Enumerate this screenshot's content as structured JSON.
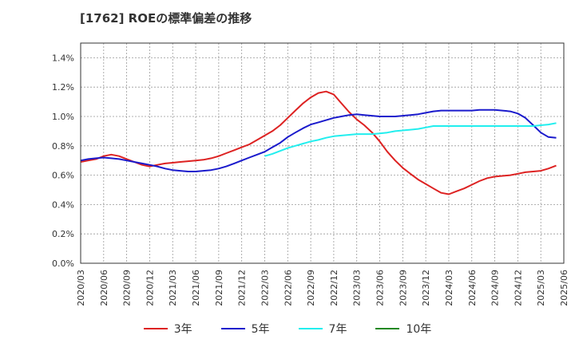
{
  "chart_data": {
    "type": "line",
    "title": "[1762]  ROEの標準偏差の推移",
    "xlabel": "",
    "ylabel": "",
    "ylim": [
      0,
      1.5
    ],
    "y_ticks": [
      "0.0%",
      "0.2%",
      "0.4%",
      "0.6%",
      "0.8%",
      "1.0%",
      "1.2%",
      "1.4%"
    ],
    "categories": [
      "2020/03",
      "2020/06",
      "2020/09",
      "2020/12",
      "2021/03",
      "2021/06",
      "2021/09",
      "2021/12",
      "2022/03",
      "2022/06",
      "2022/09",
      "2022/12",
      "2023/03",
      "2023/06",
      "2023/09",
      "2023/12",
      "2024/03",
      "2024/06",
      "2024/09",
      "2024/12",
      "2025/03",
      "2025/06"
    ],
    "series": [
      {
        "name": "3年",
        "color": "#dd2222",
        "points": [
          [
            0,
            0.69
          ],
          [
            0.33,
            0.7
          ],
          [
            0.67,
            0.71
          ],
          [
            1,
            0.73
          ],
          [
            1.33,
            0.74
          ],
          [
            1.67,
            0.73
          ],
          [
            2,
            0.71
          ],
          [
            2.33,
            0.69
          ],
          [
            2.67,
            0.67
          ],
          [
            3,
            0.66
          ],
          [
            3.33,
            0.67
          ],
          [
            3.67,
            0.68
          ],
          [
            4,
            0.685
          ],
          [
            4.33,
            0.69
          ],
          [
            4.67,
            0.695
          ],
          [
            5,
            0.7
          ],
          [
            5.33,
            0.705
          ],
          [
            5.67,
            0.715
          ],
          [
            6,
            0.73
          ],
          [
            6.33,
            0.75
          ],
          [
            6.67,
            0.77
          ],
          [
            7,
            0.79
          ],
          [
            7.33,
            0.81
          ],
          [
            7.67,
            0.84
          ],
          [
            8,
            0.87
          ],
          [
            8.33,
            0.9
          ],
          [
            8.67,
            0.94
          ],
          [
            9,
            0.99
          ],
          [
            9.33,
            1.04
          ],
          [
            9.67,
            1.09
          ],
          [
            10,
            1.13
          ],
          [
            10.33,
            1.16
          ],
          [
            10.67,
            1.17
          ],
          [
            11,
            1.15
          ],
          [
            11.33,
            1.09
          ],
          [
            11.67,
            1.03
          ],
          [
            12,
            0.98
          ],
          [
            12.33,
            0.94
          ],
          [
            12.67,
            0.89
          ],
          [
            13,
            0.83
          ],
          [
            13.33,
            0.76
          ],
          [
            13.67,
            0.7
          ],
          [
            14,
            0.65
          ],
          [
            14.33,
            0.61
          ],
          [
            14.67,
            0.57
          ],
          [
            15,
            0.54
          ],
          [
            15.33,
            0.51
          ],
          [
            15.67,
            0.48
          ],
          [
            16,
            0.47
          ],
          [
            16.33,
            0.49
          ],
          [
            16.67,
            0.51
          ],
          [
            17,
            0.535
          ],
          [
            17.33,
            0.56
          ],
          [
            17.67,
            0.58
          ],
          [
            18,
            0.59
          ],
          [
            18.33,
            0.595
          ],
          [
            18.67,
            0.6
          ],
          [
            19,
            0.61
          ],
          [
            19.33,
            0.62
          ],
          [
            19.67,
            0.625
          ],
          [
            20,
            0.63
          ],
          [
            20.33,
            0.645
          ],
          [
            20.67,
            0.665
          ]
        ]
      },
      {
        "name": "5年",
        "color": "#1a1acc",
        "points": [
          [
            0,
            0.7
          ],
          [
            0.33,
            0.71
          ],
          [
            0.67,
            0.715
          ],
          [
            1,
            0.72
          ],
          [
            1.33,
            0.715
          ],
          [
            1.67,
            0.71
          ],
          [
            2,
            0.7
          ],
          [
            2.33,
            0.69
          ],
          [
            2.67,
            0.68
          ],
          [
            3,
            0.67
          ],
          [
            3.33,
            0.66
          ],
          [
            3.67,
            0.645
          ],
          [
            4,
            0.635
          ],
          [
            4.33,
            0.63
          ],
          [
            4.67,
            0.625
          ],
          [
            5,
            0.625
          ],
          [
            5.33,
            0.63
          ],
          [
            5.67,
            0.635
          ],
          [
            6,
            0.645
          ],
          [
            6.33,
            0.66
          ],
          [
            6.67,
            0.68
          ],
          [
            7,
            0.7
          ],
          [
            7.33,
            0.72
          ],
          [
            7.67,
            0.74
          ],
          [
            8,
            0.76
          ],
          [
            8.33,
            0.79
          ],
          [
            8.67,
            0.82
          ],
          [
            9,
            0.86
          ],
          [
            9.33,
            0.89
          ],
          [
            9.67,
            0.92
          ],
          [
            10,
            0.945
          ],
          [
            10.33,
            0.96
          ],
          [
            10.67,
            0.975
          ],
          [
            11,
            0.99
          ],
          [
            11.33,
            1.0
          ],
          [
            11.67,
            1.01
          ],
          [
            12,
            1.015
          ],
          [
            12.33,
            1.01
          ],
          [
            12.67,
            1.005
          ],
          [
            13,
            1.0
          ],
          [
            13.33,
            1.0
          ],
          [
            13.67,
            1.0
          ],
          [
            14,
            1.005
          ],
          [
            14.33,
            1.01
          ],
          [
            14.67,
            1.015
          ],
          [
            15,
            1.025
          ],
          [
            15.33,
            1.035
          ],
          [
            15.67,
            1.04
          ],
          [
            16,
            1.04
          ],
          [
            16.33,
            1.04
          ],
          [
            16.67,
            1.04
          ],
          [
            17,
            1.04
          ],
          [
            17.33,
            1.045
          ],
          [
            17.67,
            1.045
          ],
          [
            18,
            1.045
          ],
          [
            18.33,
            1.04
          ],
          [
            18.67,
            1.035
          ],
          [
            19,
            1.02
          ],
          [
            19.33,
            0.99
          ],
          [
            19.67,
            0.94
          ],
          [
            20,
            0.89
          ],
          [
            20.33,
            0.86
          ],
          [
            20.67,
            0.855
          ]
        ]
      },
      {
        "name": "7年",
        "color": "#22eeee",
        "points": [
          [
            8,
            0.73
          ],
          [
            8.33,
            0.745
          ],
          [
            8.67,
            0.765
          ],
          [
            9,
            0.785
          ],
          [
            9.33,
            0.8
          ],
          [
            9.67,
            0.815
          ],
          [
            10,
            0.83
          ],
          [
            10.33,
            0.84
          ],
          [
            10.67,
            0.855
          ],
          [
            11,
            0.865
          ],
          [
            11.33,
            0.87
          ],
          [
            11.67,
            0.875
          ],
          [
            12,
            0.88
          ],
          [
            12.33,
            0.88
          ],
          [
            12.67,
            0.88
          ],
          [
            13,
            0.885
          ],
          [
            13.33,
            0.89
          ],
          [
            13.67,
            0.9
          ],
          [
            14,
            0.905
          ],
          [
            14.33,
            0.91
          ],
          [
            14.67,
            0.915
          ],
          [
            15,
            0.925
          ],
          [
            15.33,
            0.935
          ],
          [
            15.67,
            0.935
          ],
          [
            16,
            0.935
          ],
          [
            16.33,
            0.935
          ],
          [
            16.67,
            0.935
          ],
          [
            17,
            0.935
          ],
          [
            17.33,
            0.935
          ],
          [
            17.67,
            0.935
          ],
          [
            18,
            0.935
          ],
          [
            18.33,
            0.935
          ],
          [
            18.67,
            0.935
          ],
          [
            19,
            0.935
          ],
          [
            19.33,
            0.935
          ],
          [
            19.67,
            0.935
          ],
          [
            20,
            0.94
          ],
          [
            20.33,
            0.945
          ],
          [
            20.67,
            0.955
          ]
        ]
      },
      {
        "name": "10年",
        "color": "#228822",
        "points": []
      }
    ]
  }
}
